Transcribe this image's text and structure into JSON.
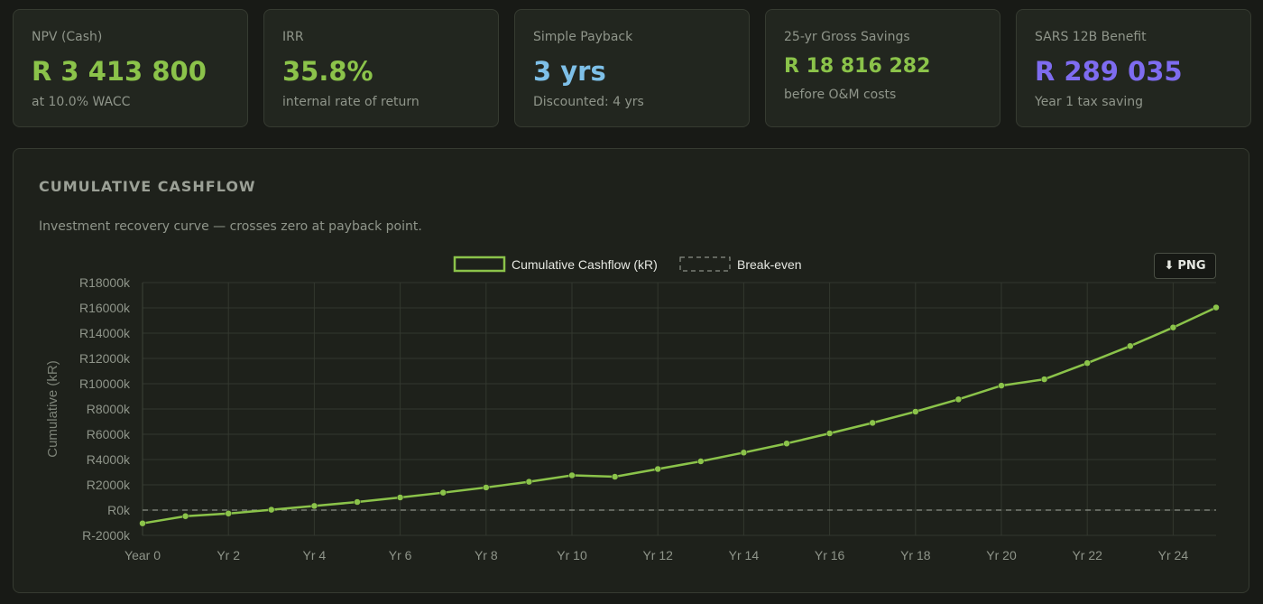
{
  "kpis": [
    {
      "label": "NPV (Cash)",
      "value": "R 3 413 800",
      "sub": "at 10.0% WACC",
      "color": "#8bc34a"
    },
    {
      "label": "IRR",
      "value": "35.8%",
      "sub": "internal rate of return",
      "color": "#8bc34a"
    },
    {
      "label": "Simple Payback",
      "value": "3 yrs",
      "sub": "Discounted: 4 yrs",
      "color": "#7ec0e8"
    },
    {
      "label": "25-yr Gross Savings",
      "value": "R 18 816 282",
      "sub": "before O&M costs",
      "color": "#8bc34a"
    },
    {
      "label": "SARS 12B Benefit",
      "value": "R 289 035",
      "sub": "Year 1 tax saving",
      "color": "#7e6cf0"
    }
  ],
  "panel": {
    "title": "CUMULATIVE CASHFLOW",
    "description": "Investment recovery curve — crosses zero at payback point.",
    "png_button": "PNG",
    "png_icon": "download-arrow-icon"
  },
  "chart_data": {
    "type": "line",
    "title": "",
    "xlabel": "",
    "ylabel": "Cumulative (kR)",
    "x": [
      0,
      1,
      2,
      3,
      4,
      5,
      6,
      7,
      8,
      9,
      10,
      11,
      12,
      13,
      14,
      15,
      16,
      17,
      18,
      19,
      20,
      21,
      22,
      23,
      24,
      25
    ],
    "x_tick_labels": [
      "Year 0",
      "Yr 2",
      "Yr 4",
      "Yr 6",
      "Yr 8",
      "Yr 10",
      "Yr 12",
      "Yr 14",
      "Yr 16",
      "Yr 18",
      "Yr 20",
      "Yr 22",
      "Yr 24"
    ],
    "x_tick_values": [
      0,
      2,
      4,
      6,
      8,
      10,
      12,
      14,
      16,
      18,
      20,
      22,
      24
    ],
    "y_tick_labels": [
      "R-2000k",
      "R0k",
      "R2000k",
      "R4000k",
      "R6000k",
      "R8000k",
      "R10000k",
      "R12000k",
      "R14000k",
      "R16000k",
      "R18000k"
    ],
    "y_tick_values": [
      -2000,
      0,
      2000,
      4000,
      6000,
      8000,
      10000,
      12000,
      14000,
      16000,
      18000
    ],
    "ylim": [
      -2000,
      18000
    ],
    "xlim": [
      0,
      25
    ],
    "grid": true,
    "legend": "top-center",
    "series": [
      {
        "name": "Cumulative Cashflow (kR)",
        "color": "#8bc34a",
        "values": [
          -1050,
          -480,
          -270,
          30,
          330,
          640,
          1000,
          1380,
          1790,
          2240,
          2750,
          2640,
          3250,
          3860,
          4550,
          5270,
          6070,
          6900,
          7790,
          8760,
          9850,
          10350,
          11630,
          12980,
          14450,
          16030
        ]
      },
      {
        "name": "Break-even",
        "color": "#8a8f86",
        "dashed": true,
        "values": [
          0,
          0,
          0,
          0,
          0,
          0,
          0,
          0,
          0,
          0,
          0,
          0,
          0,
          0,
          0,
          0,
          0,
          0,
          0,
          0,
          0,
          0,
          0,
          0,
          0,
          0
        ]
      }
    ]
  }
}
